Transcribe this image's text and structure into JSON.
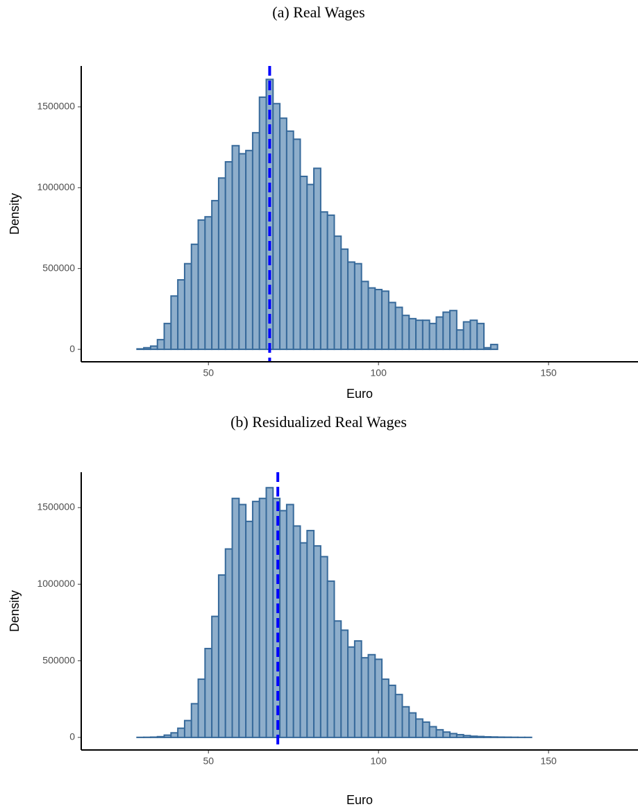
{
  "chart_data": [
    {
      "type": "histogram",
      "title": "(a) Real Wages",
      "x_label": "Euro",
      "y_label": "Density",
      "bins": [
        21,
        23,
        25,
        27,
        29,
        31,
        33,
        35,
        37,
        39,
        41,
        43,
        45,
        47,
        49,
        51,
        53,
        55,
        57,
        59,
        61,
        63,
        65,
        67,
        69,
        71,
        73,
        75,
        77,
        79,
        81,
        83,
        85,
        87,
        89,
        91,
        93,
        95,
        97,
        99,
        101,
        103,
        105,
        107,
        109,
        111,
        113,
        115,
        117,
        119,
        121,
        123,
        125,
        127,
        129,
        131,
        133,
        135,
        137,
        139,
        141,
        143,
        145,
        147,
        149,
        151,
        153,
        155,
        157,
        159,
        161,
        163,
        165,
        167,
        169
      ],
      "values": [
        0,
        0,
        0,
        0,
        3000,
        10000,
        20000,
        60000,
        160000,
        330000,
        430000,
        530000,
        650000,
        800000,
        820000,
        920000,
        1060000,
        1160000,
        1260000,
        1210000,
        1230000,
        1340000,
        1560000,
        1670000,
        1520000,
        1430000,
        1350000,
        1300000,
        1070000,
        1020000,
        1120000,
        850000,
        830000,
        700000,
        620000,
        540000,
        530000,
        420000,
        380000,
        370000,
        360000,
        290000,
        260000,
        210000,
        190000,
        180000,
        180000,
        160000,
        200000,
        230000,
        240000,
        120000,
        170000,
        180000,
        160000,
        10000,
        30000,
        0,
        0,
        0,
        0,
        0,
        0,
        0,
        0,
        0,
        0,
        0,
        0,
        0,
        0,
        0,
        0,
        0
      ],
      "color": "#8eaecb",
      "edge_color": "#36699a",
      "mean_line": 68,
      "mean_line_color": "#0000ff",
      "xlim": [
        12.6,
        176.3
      ],
      "xticks": [
        50,
        100,
        150
      ],
      "ylim": [
        -77000,
        1753000
      ],
      "yticks": [
        0,
        500000,
        1000000,
        1500000
      ]
    },
    {
      "type": "histogram",
      "title": "(b) Residualized Real Wages",
      "x_label": "Euro",
      "y_label": "Density",
      "bins": [
        21,
        23,
        25,
        27,
        29,
        31,
        33,
        35,
        37,
        39,
        41,
        43,
        45,
        47,
        49,
        51,
        53,
        55,
        57,
        59,
        61,
        63,
        65,
        67,
        69,
        71,
        73,
        75,
        77,
        79,
        81,
        83,
        85,
        87,
        89,
        91,
        93,
        95,
        97,
        99,
        101,
        103,
        105,
        107,
        109,
        111,
        113,
        115,
        117,
        119,
        121,
        123,
        125,
        127,
        129,
        131,
        133,
        135,
        137,
        139,
        141,
        143,
        145,
        147,
        149,
        151,
        153,
        155,
        157,
        159,
        161,
        163,
        165,
        167,
        169
      ],
      "values": [
        0,
        0,
        0,
        0,
        500,
        1000,
        2000,
        5000,
        15000,
        30000,
        60000,
        110000,
        220000,
        380000,
        580000,
        790000,
        1060000,
        1230000,
        1560000,
        1520000,
        1410000,
        1540000,
        1560000,
        1630000,
        1560000,
        1480000,
        1520000,
        1380000,
        1270000,
        1350000,
        1250000,
        1180000,
        1020000,
        760000,
        700000,
        590000,
        630000,
        520000,
        540000,
        510000,
        380000,
        340000,
        280000,
        200000,
        160000,
        120000,
        100000,
        70000,
        50000,
        35000,
        25000,
        18000,
        12000,
        8000,
        6000,
        4000,
        3000,
        2000,
        1500,
        1000,
        500,
        500,
        0,
        0,
        0,
        0,
        0,
        0,
        0,
        0,
        0,
        0,
        0,
        0
      ],
      "color": "#8eaecb",
      "edge_color": "#36699a",
      "mean_line": 70.4,
      "mean_line_color": "#0000ff",
      "xlim": [
        12.6,
        176.3
      ],
      "xticks": [
        50,
        100,
        150
      ],
      "ylim": [
        -82000,
        1731000
      ],
      "yticks": [
        0,
        500000,
        1000000,
        1500000
      ]
    }
  ]
}
